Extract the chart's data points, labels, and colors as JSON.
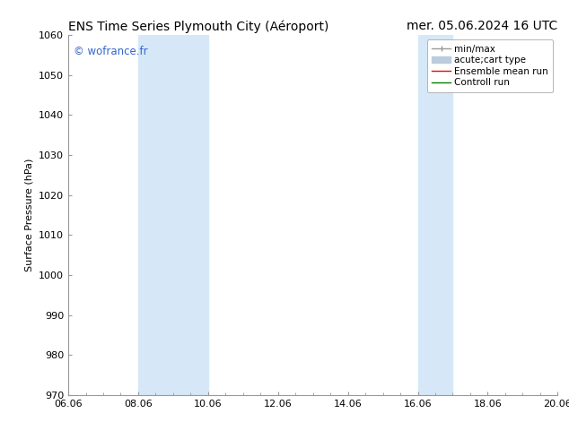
{
  "title_left": "ENS Time Series Plymouth City (Aéroport)",
  "title_right": "mer. 05.06.2024 16 UTC",
  "ylabel": "Surface Pressure (hPa)",
  "ylim": [
    970,
    1060
  ],
  "yticks": [
    970,
    980,
    990,
    1000,
    1010,
    1020,
    1030,
    1040,
    1050,
    1060
  ],
  "xticks_labels": [
    "06.06",
    "08.06",
    "10.06",
    "12.06",
    "14.06",
    "16.06",
    "18.06",
    "20.06"
  ],
  "xtick_values": [
    0,
    2,
    4,
    6,
    8,
    10,
    12,
    14
  ],
  "xlim": [
    0,
    14
  ],
  "shaded_bands": [
    {
      "x_start": 2,
      "x_end": 4,
      "color": "#d6e8f7"
    },
    {
      "x_start": 10,
      "x_end": 11,
      "color": "#d6e8f7"
    }
  ],
  "watermark": "© wofrance.fr",
  "watermark_color": "#3366cc",
  "bg_color": "#ffffff",
  "plot_bg_color": "#ffffff",
  "legend_entries": [
    {
      "label": "min/max",
      "color": "#999999",
      "lw": 1.0
    },
    {
      "label": "acute;cart type",
      "color": "#bbccdd",
      "lw": 5
    },
    {
      "label": "Ensemble mean run",
      "color": "red",
      "lw": 1.0
    },
    {
      "label": "Controll run",
      "color": "green",
      "lw": 1.0
    }
  ],
  "title_fontsize": 10,
  "axis_label_fontsize": 8,
  "tick_fontsize": 8,
  "legend_fontsize": 7.5,
  "spine_color": "#999999",
  "tick_color": "#333333"
}
